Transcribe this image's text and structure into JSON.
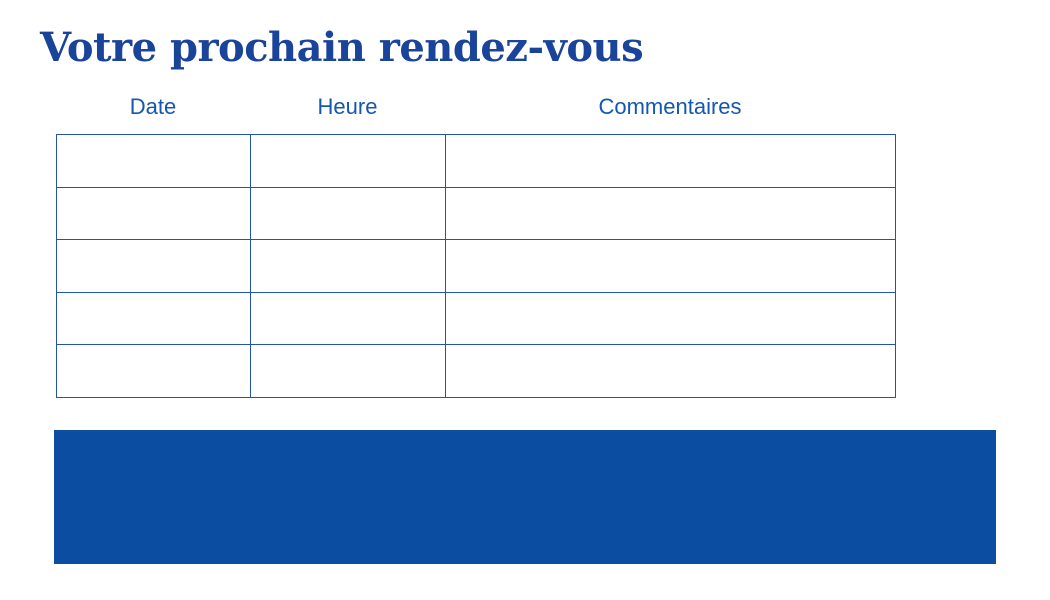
{
  "page": {
    "title": "Votre prochain rendez-vous"
  },
  "table": {
    "headers": [
      "Date",
      "Heure",
      "Commentaires"
    ],
    "rows": [
      {
        "date": "",
        "heure": "",
        "commentaires": ""
      },
      {
        "date": "",
        "heure": "",
        "commentaires": ""
      },
      {
        "date": "",
        "heure": "",
        "commentaires": ""
      },
      {
        "date": "",
        "heure": "",
        "commentaires": ""
      },
      {
        "date": "",
        "heure": "",
        "commentaires": ""
      }
    ]
  },
  "banner": {
    "text": ""
  },
  "colors": {
    "title": "#1a439a",
    "header_text": "#1457b2",
    "table_border": "#2255a8",
    "banner": "#0b4da1"
  }
}
